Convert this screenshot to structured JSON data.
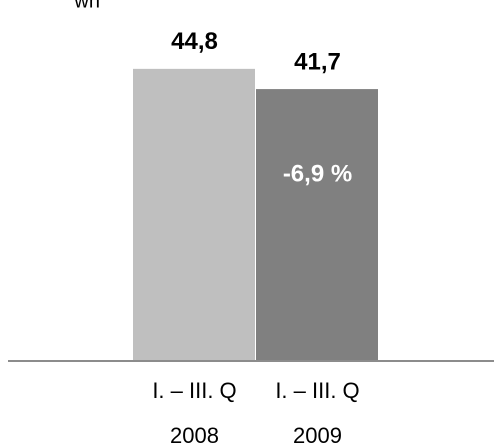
{
  "chart_data": {
    "type": "bar",
    "y_label": "wn",
    "categories": [
      "I. – III. Q\n2008",
      "I. – III. Q\n2009"
    ],
    "values": [
      44.8,
      41.7
    ],
    "value_labels": [
      "44,8",
      "41,7"
    ],
    "colors": [
      "#bfbfbf",
      "#808080"
    ],
    "annotation": "-6,9 %",
    "ylim": [
      0,
      48
    ]
  }
}
